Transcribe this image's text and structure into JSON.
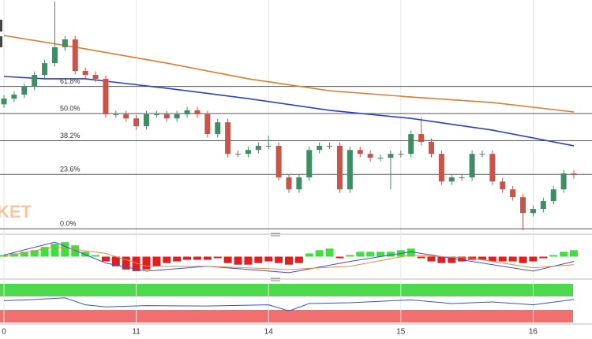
{
  "chart_data": {
    "type": "candlestick",
    "categories": [
      "0",
      null,
      null,
      null,
      null,
      null,
      null,
      null,
      null,
      null,
      null,
      null,
      null,
      "11",
      null,
      null,
      null,
      null,
      null,
      null,
      null,
      null,
      null,
      null,
      null,
      null,
      "14",
      null,
      null,
      null,
      null,
      null,
      null,
      null,
      null,
      null,
      null,
      null,
      null,
      "15",
      null,
      null,
      null,
      null,
      null,
      null,
      null,
      null,
      null,
      null,
      null,
      null,
      "16",
      null,
      null,
      null,
      null
    ],
    "open": [
      54.0,
      56.5,
      58.2,
      61.6,
      66.8,
      71.9,
      78.8,
      82.2,
      68.5,
      66.8,
      65.1,
      49.7,
      49.7,
      47.9,
      44.5,
      49.7,
      49.7,
      47.9,
      49.7,
      51.4,
      49.7,
      41.1,
      46.2,
      32.5,
      32.5,
      34.2,
      36.0,
      36.0,
      22.3,
      17.1,
      22.3,
      34.2,
      36.0,
      36.0,
      17.1,
      34.2,
      32.5,
      30.8,
      30.8,
      32.5,
      32.5,
      41.1,
      37.7,
      32.5,
      20.5,
      22.3,
      22.3,
      32.5,
      32.5,
      20.5,
      17.1,
      13.7,
      6.8,
      8.6,
      12.0,
      17.1,
      24.0
    ],
    "high": [
      58.0,
      59.7,
      63.1,
      68.3,
      73.4,
      98.6,
      83.7,
      83.7,
      70.0,
      68.3,
      66.6,
      51.2,
      51.2,
      49.4,
      51.2,
      51.2,
      51.2,
      51.2,
      52.9,
      52.9,
      51.2,
      47.7,
      47.7,
      34.0,
      35.7,
      37.5,
      40.4,
      37.5,
      23.8,
      23.8,
      35.7,
      37.5,
      37.5,
      37.5,
      35.7,
      35.7,
      34.0,
      32.3,
      34.0,
      34.0,
      42.6,
      48.6,
      39.2,
      34.0,
      23.8,
      23.8,
      34.0,
      34.0,
      34.0,
      22.0,
      18.6,
      15.2,
      10.1,
      13.5,
      18.6,
      25.5,
      25.5
    ],
    "low": [
      52.5,
      55.0,
      56.7,
      60.1,
      65.3,
      70.4,
      77.3,
      67.0,
      65.3,
      63.6,
      48.2,
      48.2,
      46.4,
      43.0,
      43.0,
      48.2,
      46.4,
      46.4,
      48.2,
      48.2,
      39.6,
      39.6,
      31.0,
      31.0,
      31.0,
      32.7,
      34.5,
      20.8,
      15.6,
      15.6,
      20.8,
      32.7,
      34.5,
      15.6,
      15.6,
      31.0,
      29.3,
      29.3,
      17.1,
      31.0,
      31.0,
      36.2,
      31.0,
      19.0,
      19.0,
      20.8,
      20.8,
      31.0,
      19.0,
      15.6,
      12.2,
      -0.7,
      5.3,
      7.1,
      10.5,
      15.6,
      21.8
    ],
    "close": [
      56.5,
      58.2,
      61.6,
      66.8,
      71.9,
      78.8,
      82.2,
      68.5,
      66.8,
      65.1,
      49.7,
      49.7,
      47.9,
      44.5,
      49.7,
      49.7,
      47.9,
      49.7,
      51.4,
      49.7,
      41.1,
      46.2,
      32.5,
      32.5,
      34.2,
      36.0,
      36.0,
      22.3,
      17.1,
      22.3,
      34.2,
      36.0,
      36.0,
      17.1,
      34.2,
      32.5,
      30.8,
      30.8,
      32.5,
      32.5,
      41.1,
      37.7,
      32.5,
      20.5,
      22.3,
      22.3,
      32.5,
      32.5,
      20.5,
      17.1,
      13.7,
      6.8,
      8.6,
      12.0,
      17.1,
      24.0,
      23.3
    ],
    "up_color": "#3d8f63",
    "down_color": "#c9544a",
    "ylim": [
      -2,
      99.3
    ],
    "fib_levels": [
      {
        "value": 61.8,
        "label": "61.8%"
      },
      {
        "value": 50.0,
        "label": "50.0%"
      },
      {
        "value": 38.2,
        "label": "38.2%"
      },
      {
        "value": 23.6,
        "label": "23.6%"
      },
      {
        "value": 0.0,
        "label": "0.0%"
      }
    ],
    "moving_averages": [
      {
        "color": "#e07b2c",
        "x": [
          0,
          8,
          16,
          24,
          32,
          40,
          48,
          56
        ],
        "values": [
          83.9,
          78.1,
          71.9,
          65.1,
          59.9,
          57.2,
          54.8,
          50.7
        ]
      },
      {
        "color": "#2a3fd0",
        "x": [
          0,
          4,
          8,
          16,
          24,
          32,
          40,
          48,
          56
        ],
        "values": [
          66.1,
          65.1,
          65.1,
          61.0,
          56.5,
          51.4,
          47.9,
          42.8,
          36.0
        ]
      }
    ],
    "watermark": "KET",
    "macd": {
      "ylim": [
        -1.2,
        1.2
      ],
      "histogram": [
        0.1,
        0.2,
        0.3,
        0.4,
        0.6,
        0.8,
        0.9,
        0.7,
        0.3,
        0.1,
        -0.3,
        -0.6,
        -0.8,
        -0.9,
        -0.8,
        -0.6,
        -0.4,
        -0.3,
        -0.2,
        -0.2,
        -0.2,
        -0.1,
        -0.4,
        -0.5,
        -0.5,
        -0.4,
        -0.3,
        -0.4,
        -0.5,
        -0.4,
        0.2,
        0.4,
        0.5,
        -0.1,
        0.1,
        0.3,
        0.3,
        0.3,
        0.3,
        0.4,
        0.5,
        -0.1,
        -0.3,
        -0.4,
        -0.4,
        -0.3,
        -0.2,
        -0.2,
        -0.3,
        -0.3,
        -0.3,
        -0.4,
        -0.3,
        -0.1,
        0.1,
        0.3,
        0.4
      ],
      "up_color": "#3ee03e",
      "down_color": "#e02020",
      "lines": [
        {
          "color": "#3a4fd8",
          "x": [
            0,
            5,
            10,
            14,
            20,
            28,
            34,
            40,
            46,
            52,
            56
          ],
          "values": [
            0.1,
            0.9,
            -0.4,
            -0.9,
            -0.6,
            -1.0,
            -0.3,
            0.3,
            -0.3,
            -0.9,
            -0.3
          ]
        },
        {
          "color": "#e8893a",
          "x": [
            0,
            5,
            10,
            14,
            20,
            28,
            34,
            40,
            46,
            52,
            56
          ],
          "values": [
            0.0,
            0.6,
            0.2,
            -0.6,
            -0.6,
            -0.8,
            -0.6,
            0.1,
            -0.1,
            -0.7,
            -0.5
          ]
        }
      ],
      "label": ")"
    },
    "rsi": {
      "ylim": [
        0,
        100
      ],
      "color": "#3a4fd8",
      "x": [
        0,
        3,
        6,
        8,
        10,
        14,
        20,
        26,
        28,
        30,
        34,
        40,
        44,
        48,
        52,
        56
      ],
      "values": [
        55,
        58,
        62,
        45,
        40,
        43,
        42,
        45,
        30,
        48,
        50,
        57,
        48,
        52,
        45,
        58
      ],
      "label": ")"
    }
  }
}
